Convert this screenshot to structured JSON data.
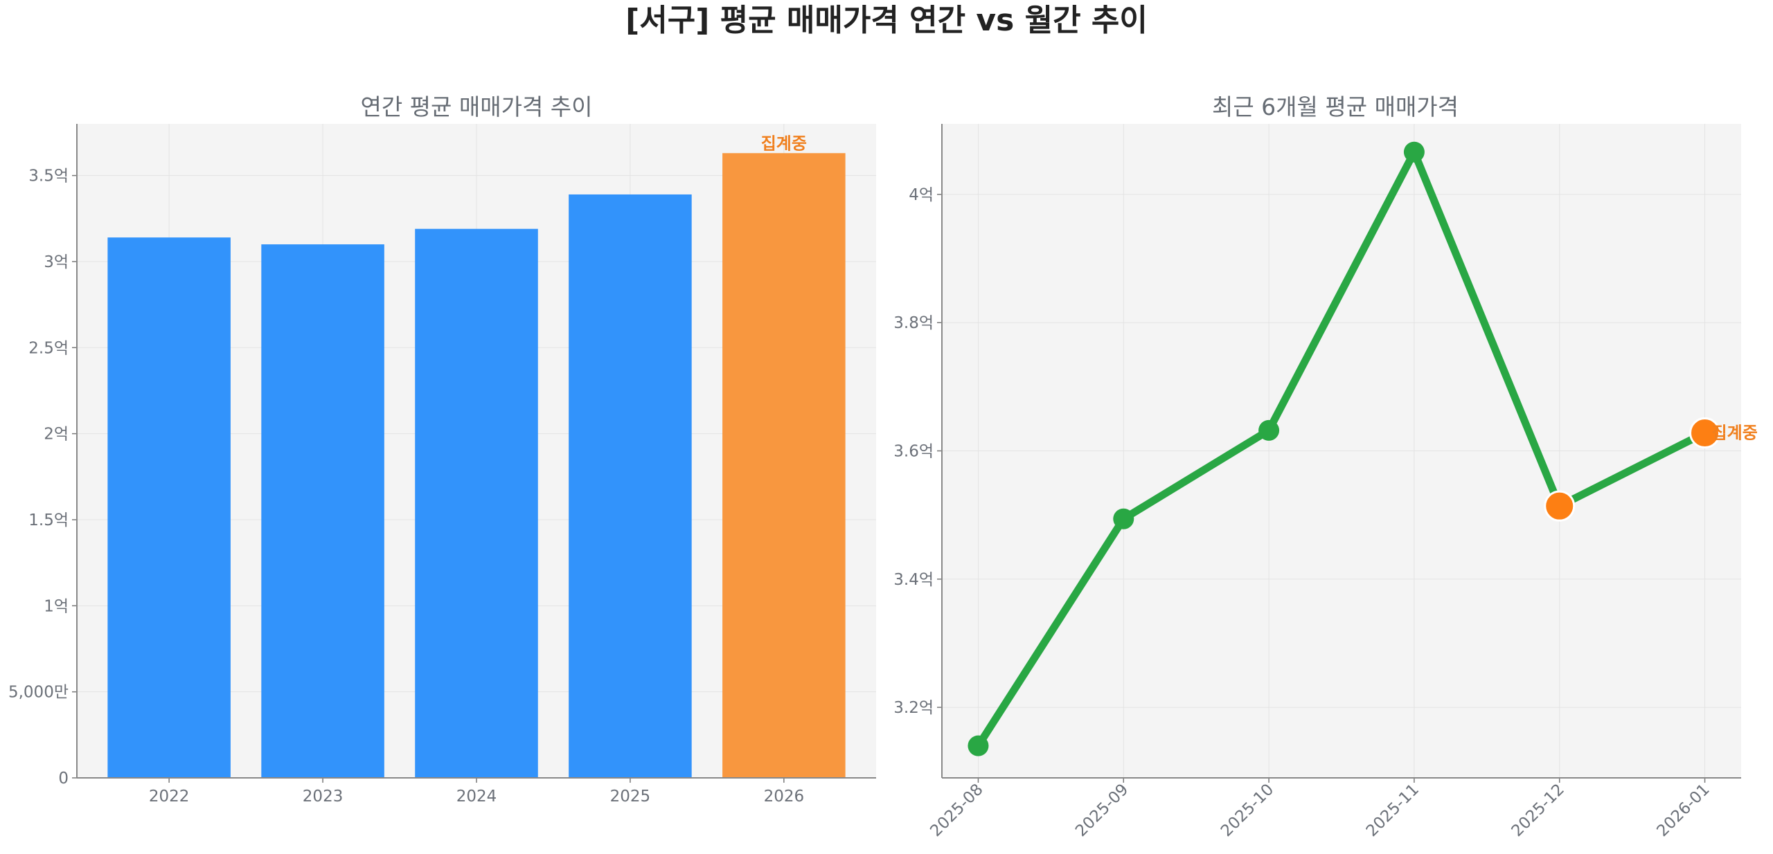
{
  "figure_title": "[서구] 평균 매매가격 연간 vs 월간 추이",
  "colors": {
    "bar": "#3293fb",
    "bar_highlight": "#f8973f",
    "line": "#29a744",
    "marker_highlight": "#fd7f13",
    "annotation": "#f07f1d",
    "panel_bg": "#f4f4f4",
    "grid": "#e3e3e3"
  },
  "chart_data": [
    {
      "type": "bar",
      "title": "연간 평균 매매가격 추이",
      "categories": [
        "2022",
        "2023",
        "2024",
        "2025",
        "2026"
      ],
      "values": [
        314000000,
        310000000,
        319000000,
        339000000,
        363000000
      ],
      "highlight_index": 4,
      "annotation": "집계중",
      "ylim": [
        0,
        380000000
      ],
      "yticks": [
        0,
        50000000,
        100000000,
        150000000,
        200000000,
        250000000,
        300000000,
        350000000
      ],
      "ytick_labels": [
        "0",
        "5,000만",
        "1억",
        "1.5억",
        "2억",
        "2.5억",
        "3억",
        "3.5억"
      ],
      "grid": true
    },
    {
      "type": "line",
      "title": "최근 6개월 평균 매매가격",
      "categories": [
        "2025-08",
        "2025-09",
        "2025-10",
        "2025-11",
        "2025-12",
        "2026-01"
      ],
      "values": [
        314000000,
        349400000,
        363200000,
        406600000,
        351400000,
        362800000
      ],
      "highlight_indices": [
        4,
        5
      ],
      "annotation": "집계중",
      "ylim": [
        309000000,
        411000000
      ],
      "yticks": [
        320000000,
        340000000,
        360000000,
        380000000,
        400000000
      ],
      "ytick_labels": [
        "3.2억",
        "3.4억",
        "3.6억",
        "3.8억",
        "4억"
      ],
      "grid": true
    }
  ]
}
